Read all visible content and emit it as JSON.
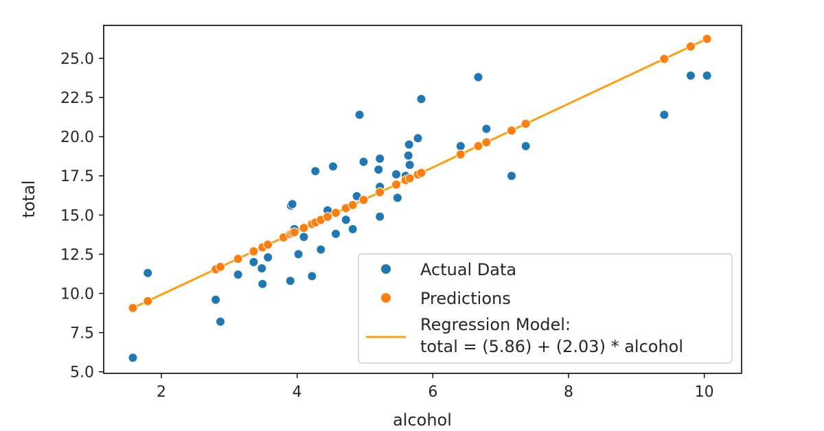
{
  "chart_data": {
    "type": "scatter",
    "xlabel": "alcohol",
    "ylabel": "total",
    "xlim": [
      1.15,
      10.55
    ],
    "ylim": [
      4.9,
      27.1
    ],
    "xticks": [
      2,
      4,
      6,
      8,
      10
    ],
    "yticks": [
      5.0,
      7.5,
      10.0,
      12.5,
      15.0,
      17.5,
      20.0,
      22.5,
      25.0
    ],
    "xtick_labels": [
      "2",
      "4",
      "6",
      "8",
      "10"
    ],
    "ytick_labels": [
      "5.0",
      "7.5",
      "10.0",
      "12.5",
      "15.0",
      "17.5",
      "20.0",
      "22.5",
      "25.0"
    ],
    "grid": false,
    "legend_position": "lower-right",
    "colors": {
      "actual": "#1f77b4",
      "predictions": "#ff7f0e",
      "line": "#ff9f0e"
    },
    "series": [
      {
        "name": "Actual Data",
        "kind": "scatter",
        "points": [
          [
            1.58,
            5.9
          ],
          [
            1.8,
            11.3
          ],
          [
            2.8,
            9.6
          ],
          [
            2.87,
            8.2
          ],
          [
            3.13,
            11.2
          ],
          [
            3.35,
            12.7
          ],
          [
            3.36,
            12.0
          ],
          [
            3.48,
            11.6
          ],
          [
            3.49,
            10.6
          ],
          [
            3.57,
            12.3
          ],
          [
            3.9,
            10.8
          ],
          [
            3.91,
            15.6
          ],
          [
            3.93,
            15.7
          ],
          [
            3.96,
            14.1
          ],
          [
            4.02,
            12.5
          ],
          [
            4.1,
            13.6
          ],
          [
            4.22,
            11.1
          ],
          [
            4.27,
            17.8
          ],
          [
            4.35,
            12.8
          ],
          [
            4.45,
            15.3
          ],
          [
            4.53,
            18.1
          ],
          [
            4.57,
            13.8
          ],
          [
            4.72,
            14.7
          ],
          [
            4.82,
            14.1
          ],
          [
            4.88,
            16.2
          ],
          [
            4.92,
            21.4
          ],
          [
            4.98,
            18.4
          ],
          [
            5.2,
            17.9
          ],
          [
            5.22,
            18.6
          ],
          [
            5.22,
            16.8
          ],
          [
            5.22,
            14.9
          ],
          [
            5.46,
            17.6
          ],
          [
            5.48,
            16.1
          ],
          [
            5.6,
            17.5
          ],
          [
            5.64,
            18.8
          ],
          [
            5.65,
            19.5
          ],
          [
            5.66,
            18.2
          ],
          [
            5.78,
            19.9
          ],
          [
            5.83,
            22.4
          ],
          [
            6.41,
            19.4
          ],
          [
            6.67,
            23.8
          ],
          [
            6.79,
            20.5
          ],
          [
            7.16,
            17.5
          ],
          [
            7.37,
            19.4
          ],
          [
            9.41,
            21.4
          ],
          [
            9.8,
            23.9
          ],
          [
            10.04,
            23.9
          ]
        ]
      },
      {
        "name": "Predictions",
        "kind": "scatter",
        "points": [
          [
            1.58,
            9.07
          ],
          [
            1.8,
            9.51
          ],
          [
            2.8,
            11.54
          ],
          [
            2.87,
            11.69
          ],
          [
            3.13,
            12.21
          ],
          [
            3.35,
            12.66
          ],
          [
            3.36,
            12.68
          ],
          [
            3.48,
            12.92
          ],
          [
            3.49,
            12.94
          ],
          [
            3.57,
            13.11
          ],
          [
            3.8,
            13.57
          ],
          [
            3.9,
            13.78
          ],
          [
            3.93,
            13.84
          ],
          [
            3.96,
            13.9
          ],
          [
            4.1,
            14.18
          ],
          [
            4.22,
            14.43
          ],
          [
            4.27,
            14.53
          ],
          [
            4.35,
            14.69
          ],
          [
            4.45,
            14.89
          ],
          [
            4.57,
            15.14
          ],
          [
            4.72,
            15.44
          ],
          [
            4.82,
            15.64
          ],
          [
            4.98,
            15.97
          ],
          [
            5.22,
            16.46
          ],
          [
            5.46,
            16.94
          ],
          [
            5.6,
            17.23
          ],
          [
            5.66,
            17.35
          ],
          [
            5.78,
            17.59
          ],
          [
            5.83,
            17.69
          ],
          [
            6.41,
            18.87
          ],
          [
            6.67,
            19.4
          ],
          [
            6.79,
            19.64
          ],
          [
            7.16,
            20.39
          ],
          [
            7.37,
            20.82
          ],
          [
            9.41,
            24.96
          ],
          [
            9.8,
            25.75
          ],
          [
            10.04,
            26.24
          ]
        ]
      },
      {
        "name": "Regression Model:\ntotal = (5.86) + (2.03) * alcohol",
        "kind": "line",
        "intercept": 5.86,
        "slope": 2.03,
        "x_range": [
          1.58,
          10.04
        ]
      }
    ]
  },
  "legend": {
    "actual_label": "Actual Data",
    "predictions_label": "Predictions",
    "model_label_line1": "Regression Model:",
    "model_label_line2": "total = (5.86) + (2.03) * alcohol"
  }
}
